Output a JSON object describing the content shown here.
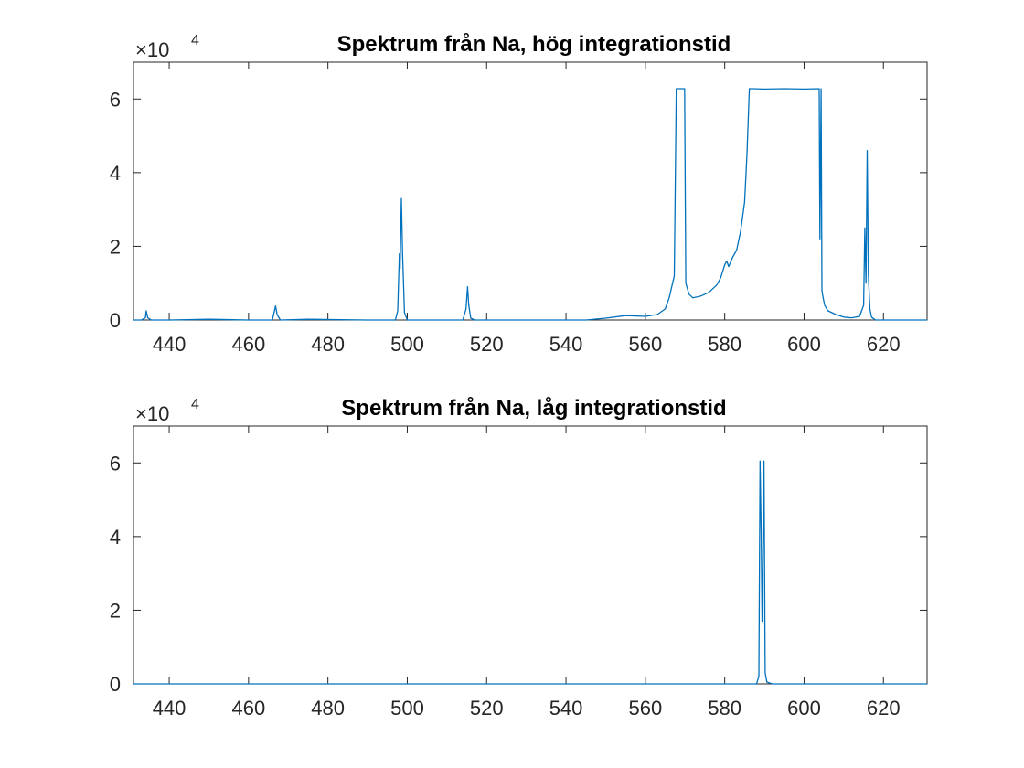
{
  "chart_data": [
    {
      "type": "line",
      "title": "Spektrum från Na, hög integrationstid",
      "xlabel": "",
      "ylabel": "",
      "xlim": [
        431,
        631
      ],
      "ylim": [
        0,
        70000
      ],
      "xticks": [
        440,
        460,
        480,
        500,
        520,
        540,
        560,
        580,
        600,
        620
      ],
      "xtick_labels": [
        "440",
        "460",
        "480",
        "500",
        "520",
        "540",
        "560",
        "580",
        "600",
        "620"
      ],
      "yticks": [
        0,
        20000,
        40000,
        60000
      ],
      "ytick_labels": [
        "0",
        "2",
        "4",
        "6"
      ],
      "y_multiplier": {
        "base": "×10",
        "exponent": "4"
      },
      "color": "#0072BD",
      "series": [
        {
          "name": "hög",
          "x": [
            431,
            433,
            434,
            434.2,
            434.6,
            435.5,
            440,
            450,
            460,
            466,
            466.8,
            467.2,
            468,
            475,
            490,
            497,
            497.6,
            498,
            498.2,
            498.5,
            498.8,
            499.3,
            500,
            505,
            514,
            514.8,
            515.2,
            515.5,
            516,
            517,
            530,
            545,
            550,
            555,
            560,
            563,
            565,
            566,
            567.3,
            567.8,
            568.1,
            568.5,
            569,
            569.5,
            569.9,
            570.2,
            571,
            572,
            574,
            576,
            578,
            579,
            580,
            580.5,
            581,
            582,
            583,
            584,
            585,
            585.6,
            586.2,
            587,
            590,
            595,
            600,
            603.8,
            604,
            604.3,
            604.5,
            604.8,
            605.2,
            606,
            608,
            610,
            612,
            614,
            615,
            615.3,
            615.6,
            615.9,
            616.2,
            616.6,
            617,
            618,
            620,
            625,
            631
          ],
          "values": [
            0,
            0,
            600,
            2500,
            600,
            0,
            0,
            200,
            0,
            0,
            3800,
            1500,
            0,
            200,
            0,
            0,
            2500,
            18000,
            14000,
            33000,
            18000,
            2000,
            0,
            0,
            0,
            3000,
            9000,
            4000,
            500,
            0,
            0,
            0,
            500,
            1200,
            1000,
            1500,
            3000,
            6000,
            12000,
            62800,
            62800,
            62800,
            62800,
            62800,
            62800,
            10000,
            7000,
            6000,
            6500,
            7500,
            9500,
            11500,
            15000,
            16000,
            14500,
            17000,
            19000,
            24000,
            32000,
            45000,
            62800,
            62800,
            62700,
            62800,
            62700,
            62800,
            22000,
            62800,
            8000,
            6000,
            4000,
            2500,
            1500,
            800,
            600,
            1000,
            4000,
            25000,
            10000,
            46000,
            12000,
            3000,
            800,
            0,
            0,
            0,
            0
          ]
        }
      ]
    },
    {
      "type": "line",
      "title": "Spektrum från Na, låg integrationstid",
      "xlabel": "",
      "ylabel": "",
      "xlim": [
        431,
        631
      ],
      "ylim": [
        0,
        70000
      ],
      "xticks": [
        440,
        460,
        480,
        500,
        520,
        540,
        560,
        580,
        600,
        620
      ],
      "xtick_labels": [
        "440",
        "460",
        "480",
        "500",
        "520",
        "540",
        "560",
        "580",
        "600",
        "620"
      ],
      "yticks": [
        0,
        20000,
        40000,
        60000
      ],
      "ytick_labels": [
        "0",
        "2",
        "4",
        "6"
      ],
      "y_multiplier": {
        "base": "×10",
        "exponent": "4"
      },
      "color": "#0072BD",
      "series": [
        {
          "name": "låg",
          "x": [
            431,
            560,
            585,
            588,
            588.6,
            588.9,
            589.2,
            589.4,
            589.6,
            589.9,
            590.2,
            590.6,
            592,
            631
          ],
          "values": [
            0,
            0,
            0,
            0,
            2000,
            60500,
            40000,
            17000,
            30000,
            60500,
            3000,
            500,
            0,
            0
          ]
        }
      ]
    }
  ]
}
